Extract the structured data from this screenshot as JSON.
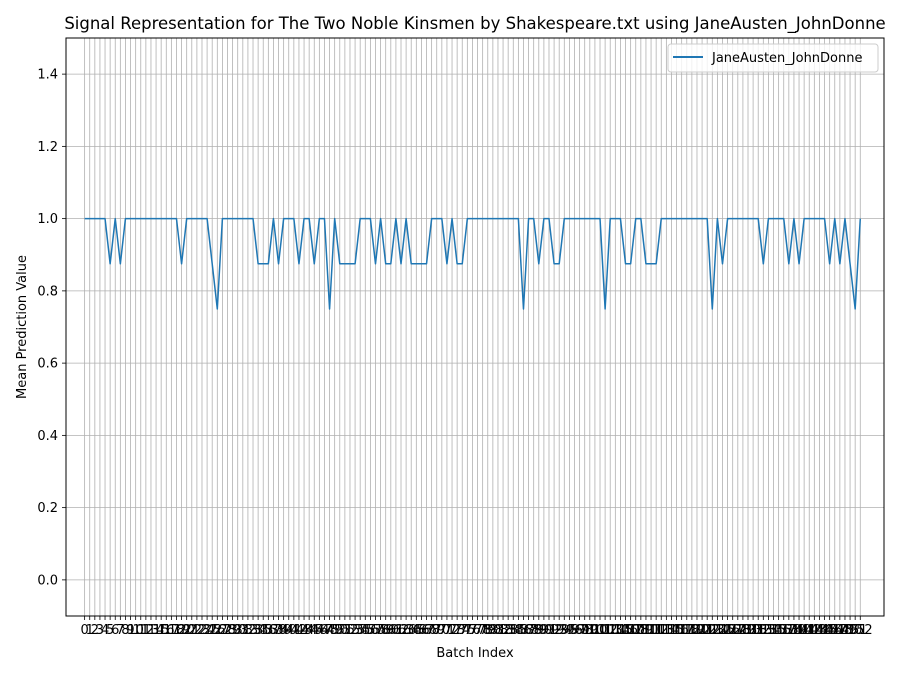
{
  "chart_data": {
    "type": "line",
    "title": "Signal Representation for The Two Noble Kinsmen by Shakespeare.txt using JaneAusten_JohnDonne",
    "xlabel": "Batch Index",
    "ylabel": "Mean Prediction Value",
    "xlim": [
      -3.65,
      156.65
    ],
    "ylim": [
      -0.1,
      1.5
    ],
    "yticks": [
      0.0,
      0.2,
      0.4,
      0.6,
      0.8,
      1.0,
      1.2,
      1.4
    ],
    "grid": true,
    "legend_position": "top-right",
    "series": [
      {
        "name": "JaneAusten_JohnDonne",
        "color": "#1f77b4",
        "x_start": 0,
        "values": [
          1,
          1,
          1,
          1,
          1,
          0.875,
          1,
          0.875,
          1,
          1,
          1,
          1,
          1,
          1,
          1,
          1,
          1,
          1,
          1,
          0.875,
          1,
          1,
          1,
          1,
          1,
          0.875,
          0.75,
          1,
          1,
          1,
          1,
          1,
          1,
          1,
          0.875,
          0.875,
          0.875,
          1,
          0.875,
          1,
          1,
          1,
          0.875,
          1,
          1,
          0.875,
          1,
          1,
          0.75,
          1,
          0.875,
          0.875,
          0.875,
          0.875,
          1,
          1,
          1,
          0.875,
          1,
          0.875,
          0.875,
          1,
          0.875,
          1,
          0.875,
          0.875,
          0.875,
          0.875,
          1,
          1,
          1,
          0.875,
          1,
          0.875,
          0.875,
          1,
          1,
          1,
          1,
          1,
          1,
          1,
          1,
          1,
          1,
          1,
          0.75,
          1,
          1,
          0.875,
          1,
          1,
          0.875,
          0.875,
          1,
          1,
          1,
          1,
          1,
          1,
          1,
          1,
          0.75,
          1,
          1,
          1,
          0.875,
          0.875,
          1,
          1,
          0.875,
          0.875,
          0.875,
          1,
          1,
          1,
          1,
          1,
          1,
          1,
          1,
          1,
          1,
          0.75,
          1,
          0.875,
          1,
          1,
          1,
          1,
          1,
          1,
          1,
          0.875,
          1,
          1,
          1,
          1,
          0.875,
          1,
          0.875,
          1,
          1,
          1,
          1,
          1,
          0.875,
          1,
          0.875,
          1,
          0.875,
          0.75,
          1
        ]
      }
    ]
  }
}
